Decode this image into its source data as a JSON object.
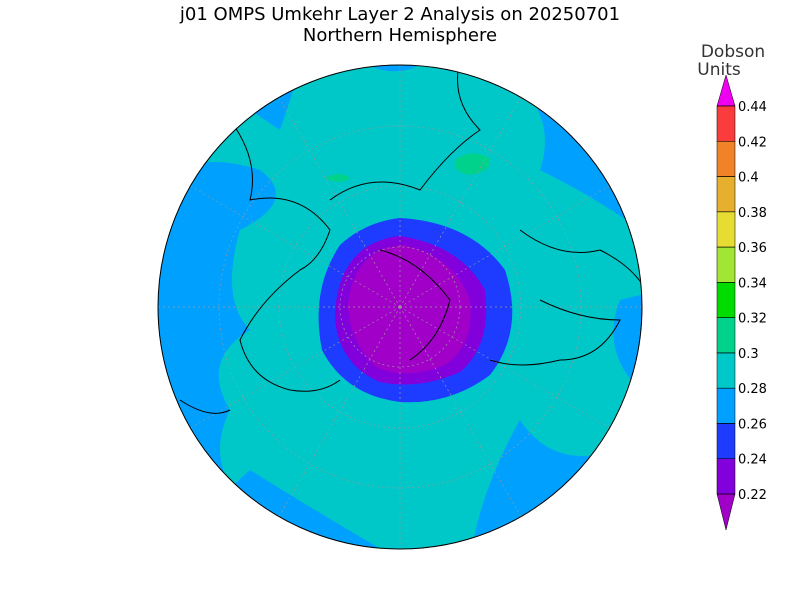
{
  "header": {
    "title": "j01 OMPS Umkehr Layer 2 Analysis on 20250701",
    "subtitle": "Northern Hemisphere"
  },
  "colorbar": {
    "label": [
      "Dobson",
      "Units"
    ],
    "ticks": [
      0.22,
      0.24,
      0.26,
      0.28,
      0.3,
      0.32,
      0.34,
      0.36,
      0.38,
      0.4,
      0.42,
      0.44
    ],
    "colors": [
      "#a000c8",
      "#8200dc",
      "#1e3cff",
      "#00a0ff",
      "#00c8c8",
      "#00d28c",
      "#00dc00",
      "#a0e632",
      "#e6dc32",
      "#e6af2d",
      "#f08228",
      "#fa3c3c",
      "#f000f0"
    ]
  }
}
